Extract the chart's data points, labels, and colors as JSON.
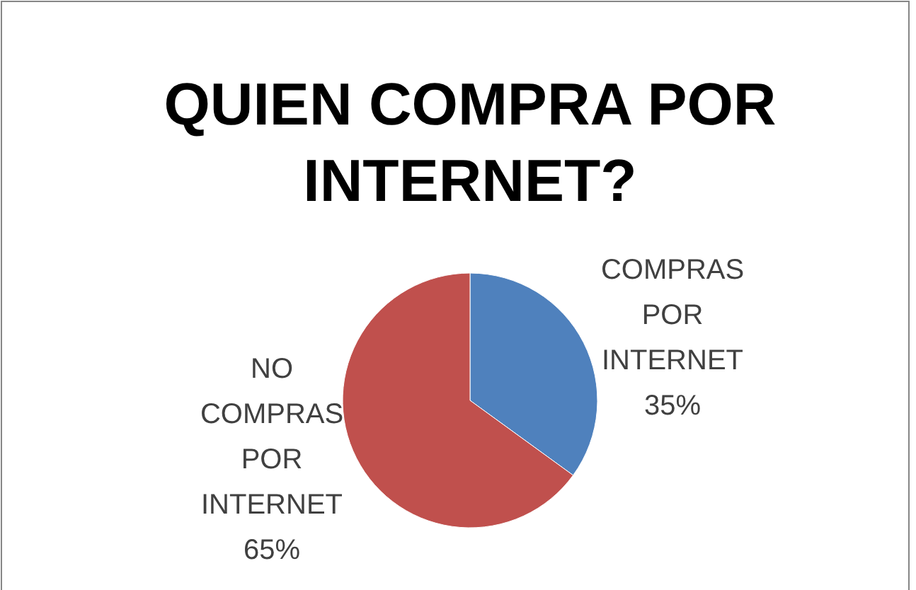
{
  "chart_data": {
    "type": "pie",
    "title": "QUIEN COMPRA POR INTERNET?",
    "categories": [
      "COMPRAS POR INTERNET",
      "NO COMPRAS POR INTERNET"
    ],
    "values": [
      35,
      65
    ],
    "colors": [
      "#4f81bd",
      "#c0504d"
    ],
    "value_labels": [
      "35%",
      "65%"
    ]
  }
}
